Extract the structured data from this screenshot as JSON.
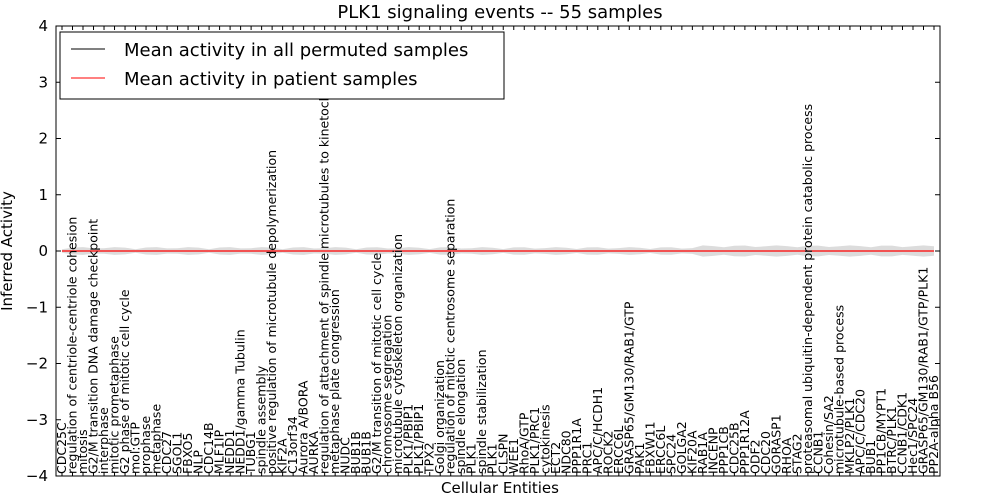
{
  "chart_data": {
    "type": "line",
    "title": "PLK1 signaling events -- 55 samples",
    "xlabel": "Cellular Entities",
    "ylabel": "Inferred Activity",
    "ylim": [
      -4,
      4
    ],
    "yticks": [
      -4,
      -3,
      -2,
      -1,
      0,
      1,
      2,
      3,
      4
    ],
    "grid": false,
    "legend_position": "top-left",
    "categories": [
      "CDC25C",
      "regulation of centriole-centriole cohesion",
      "mitosis",
      "G2/M transition DNA damage checkpoint",
      "interphase",
      "mitotic prometaphase",
      "G2 phase of mitotic cell cycle",
      "mol:GTP",
      "prophase",
      "metaphase",
      "CDC27",
      "SGOL1",
      "FBXO5",
      "NLP",
      "CDC14B",
      "MLF1IP",
      "NEDD1",
      "NEDD1/gamma Tubulin",
      "TUBG1",
      "spindle assembly",
      "positive regulation of microtubule depolymerization",
      "KIF2A",
      "C13orf34",
      "Aurora A/BORA",
      "AURKA",
      "regulation of attachment of spindle microtubules to kinetochore",
      "metaphase plate congression",
      "NUDC",
      "BUB1B",
      "BUB1B",
      "G2/M transition of mitotic cell cycle",
      "chromosome segregation",
      "microtubule cytoskeleton organization",
      "PLK1/PBIP1",
      "PLK1/PBIP1",
      "TPX2",
      "Golgi organization",
      "regulation of mitotic centrosome separation",
      "spindle elongation",
      "PLK1",
      "spindle stabilization",
      "PLK1",
      "CLSPN",
      "WEE1",
      "RhoA/GTP",
      "PLK1/PRC1",
      "cytokinesis",
      "ECT2",
      "NDC80",
      "PPP1R1A",
      "PRC1",
      "APC/C/HCDH1",
      "ROCK2",
      "ERCC6L",
      "GRASP65/GM130/RAB1/GTP",
      "PAK1",
      "FBXW11",
      "ERCC6L",
      "SPC24",
      "GOLGA2",
      "KIF20A",
      "RAB1A",
      "INCENP",
      "PPP1CB",
      "CDC25B",
      "PPP1R12A",
      "ODF2",
      "CDC20",
      "GORASP1",
      "RHOA",
      "STAG2",
      "proteasomal ubiquitin-dependent protein catabolic process",
      "CCNB1",
      "Cohesin/SA2",
      "microtubule-based process",
      "MKLP2/PLK1",
      "APC/C/CDC20",
      "BUB1",
      "PP1CB/MYPT1",
      "BTRC/PLK1",
      "CCNB1/CDK1",
      "Hec1/SPC24",
      "GRASP65/GM130/RAB1/GTP/PLK1",
      "PP2A-alpha B56"
    ],
    "series": [
      {
        "name": "Mean activity in all permuted samples",
        "color": "#000000",
        "values": [
          0,
          0,
          0,
          0,
          0,
          0,
          0,
          0,
          0,
          0,
          0,
          0,
          0,
          0,
          0,
          0,
          0,
          0,
          0,
          0,
          0,
          0,
          0,
          0,
          0,
          0,
          0,
          0,
          0,
          0,
          0,
          0,
          0,
          0,
          0,
          0,
          0,
          0,
          0,
          0,
          0,
          0,
          0,
          0,
          0,
          0,
          0,
          0,
          0,
          0,
          0,
          0,
          0,
          0,
          0,
          0,
          0,
          0,
          0,
          0,
          0,
          0,
          0,
          0,
          0,
          0,
          0,
          0,
          0,
          0,
          0,
          0,
          0,
          0,
          0,
          0,
          0,
          0,
          0,
          0,
          0,
          0,
          0,
          0
        ]
      },
      {
        "name": "Mean activity in patient samples",
        "color": "#ff0000",
        "values": [
          0,
          0,
          0,
          0,
          0,
          0,
          0,
          0,
          0,
          0,
          0,
          0,
          0,
          0,
          0,
          0,
          0,
          0,
          0,
          0,
          0,
          0,
          0,
          0,
          0,
          0,
          0,
          0,
          0,
          0,
          0,
          0,
          0,
          0,
          0,
          0,
          0,
          0,
          0,
          0,
          0,
          0,
          0,
          0,
          0,
          0,
          0,
          0,
          0,
          0,
          0,
          0,
          0,
          0,
          0,
          0,
          0,
          0,
          0,
          0,
          0,
          0,
          0,
          0,
          0,
          0,
          0,
          0,
          0,
          0,
          0,
          0,
          0,
          0,
          0,
          0,
          0,
          0,
          0,
          0,
          0,
          0,
          0,
          0
        ]
      }
    ],
    "band_color": "#c0c0c0"
  }
}
